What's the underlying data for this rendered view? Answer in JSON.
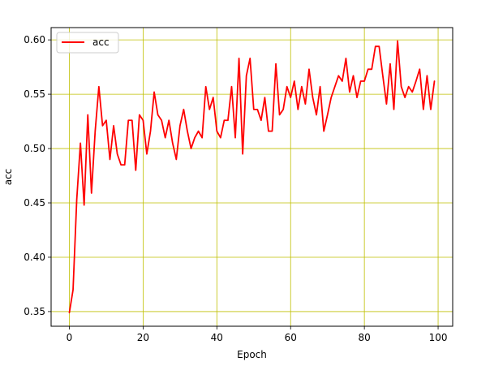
{
  "chart_data": {
    "type": "line",
    "xlabel": "Epoch",
    "ylabel": "acc",
    "xlim": [
      -4.95,
      103.95
    ],
    "ylim": [
      0.3365,
      0.6113
    ],
    "xticks": [
      0,
      20,
      40,
      60,
      80,
      100
    ],
    "yticks": [
      0.35,
      0.4,
      0.45,
      0.5,
      0.55,
      0.6
    ],
    "xtick_labels": [
      "0",
      "20",
      "40",
      "60",
      "80",
      "100"
    ],
    "ytick_labels": [
      "0.35",
      "0.40",
      "0.45",
      "0.50",
      "0.55",
      "0.60"
    ],
    "grid": true,
    "grid_color": "#bfbf00",
    "legend": {
      "position": "upper-left",
      "entries": [
        "acc"
      ]
    },
    "series": [
      {
        "name": "acc",
        "color": "#ff0000",
        "x": [
          0,
          1,
          2,
          3,
          4,
          5,
          6,
          7,
          8,
          9,
          10,
          11,
          12,
          13,
          14,
          15,
          16,
          17,
          18,
          19,
          20,
          21,
          22,
          23,
          24,
          25,
          26,
          27,
          28,
          29,
          30,
          31,
          32,
          33,
          34,
          35,
          36,
          37,
          38,
          39,
          40,
          41,
          42,
          43,
          44,
          45,
          46,
          47,
          48,
          49,
          50,
          51,
          52,
          53,
          54,
          55,
          56,
          57,
          58,
          59,
          60,
          61,
          62,
          63,
          64,
          65,
          66,
          67,
          68,
          69,
          70,
          71,
          72,
          73,
          74,
          75,
          76,
          77,
          78,
          79,
          80,
          81,
          82,
          83,
          84,
          85,
          86,
          87,
          88,
          89,
          90,
          91,
          92,
          93,
          94,
          95,
          96,
          97,
          98,
          99
        ],
        "values": [
          0.349,
          0.37,
          0.453,
          0.505,
          0.448,
          0.531,
          0.459,
          0.516,
          0.557,
          0.521,
          0.526,
          0.49,
          0.521,
          0.495,
          0.485,
          0.485,
          0.526,
          0.526,
          0.48,
          0.531,
          0.526,
          0.495,
          0.516,
          0.552,
          0.531,
          0.526,
          0.51,
          0.526,
          0.505,
          0.49,
          0.521,
          0.536,
          0.516,
          0.5,
          0.51,
          0.516,
          0.51,
          0.557,
          0.536,
          0.547,
          0.516,
          0.51,
          0.526,
          0.526,
          0.557,
          0.51,
          0.583,
          0.495,
          0.567,
          0.583,
          0.536,
          0.536,
          0.526,
          0.547,
          0.516,
          0.516,
          0.578,
          0.531,
          0.536,
          0.557,
          0.547,
          0.562,
          0.536,
          0.557,
          0.541,
          0.573,
          0.547,
          0.531,
          0.557,
          0.516,
          0.531,
          0.547,
          0.557,
          0.567,
          0.562,
          0.583,
          0.552,
          0.567,
          0.547,
          0.562,
          0.562,
          0.573,
          0.573,
          0.594,
          0.594,
          0.567,
          0.541,
          0.578,
          0.536,
          0.599,
          0.557,
          0.547,
          0.557,
          0.552,
          0.562,
          0.573,
          0.536,
          0.567,
          0.536,
          0.562
        ]
      }
    ]
  }
}
